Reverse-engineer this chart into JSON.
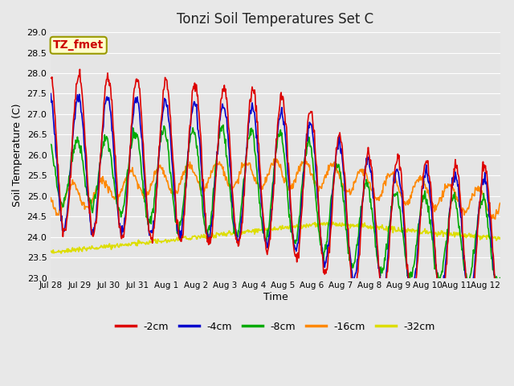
{
  "title": "Tonzi Soil Temperatures Set C",
  "xlabel": "Time",
  "ylabel": "Soil Temperature (C)",
  "annotation": "TZ_fmet",
  "ylim": [
    23.0,
    29.0
  ],
  "yticks": [
    23.0,
    23.5,
    24.0,
    24.5,
    25.0,
    25.5,
    26.0,
    26.5,
    27.0,
    27.5,
    28.0,
    28.5,
    29.0
  ],
  "series_colors": [
    "#dd0000",
    "#0000cc",
    "#00aa00",
    "#ff8800",
    "#dddd00"
  ],
  "series_labels": [
    "-2cm",
    "-4cm",
    "-8cm",
    "-16cm",
    "-32cm"
  ],
  "series_lw": [
    1.2,
    1.2,
    1.2,
    1.2,
    1.2
  ],
  "bg_color": "#e5e5e5",
  "grid_color": "#ffffff",
  "annotation_bg": "#ffffcc",
  "annotation_border": "#999900",
  "annotation_text_color": "#cc0000",
  "fig_bg": "#e8e8e8",
  "n_days": 15.5,
  "samples_per_day": 48
}
